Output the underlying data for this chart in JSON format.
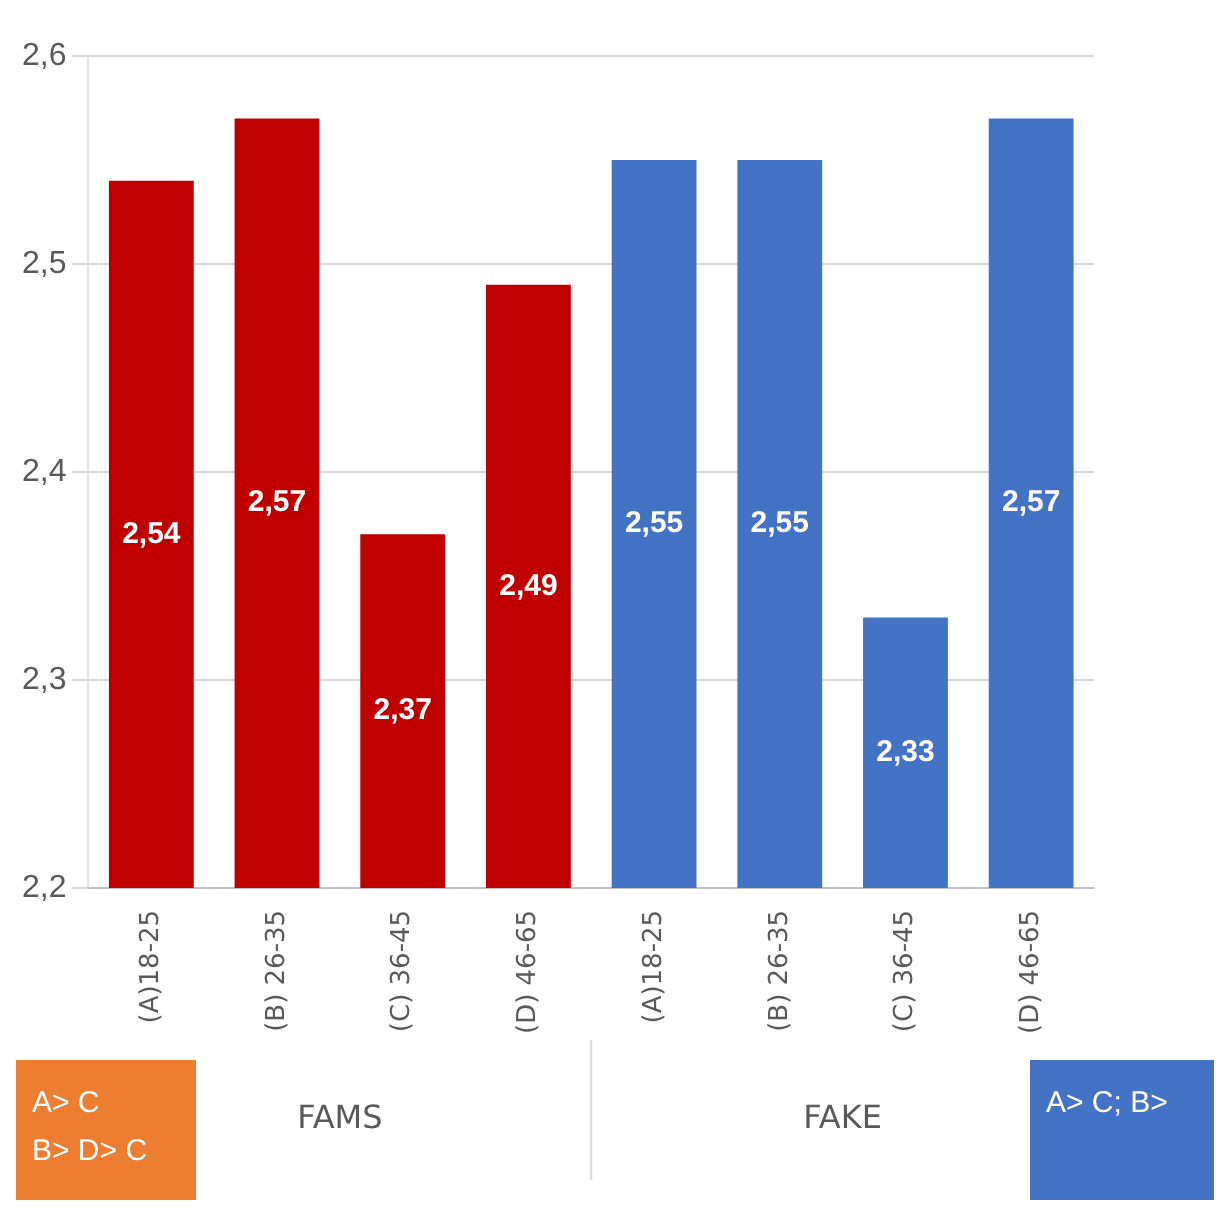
{
  "chart_data": {
    "type": "bar",
    "categories": [
      "(A)18-25",
      "(B) 26-35",
      "(C) 36-45",
      "(D) 46-65",
      "(A)18-25",
      "(B) 26-35",
      "(C) 36-45",
      "(D) 46-65"
    ],
    "values": [
      2.54,
      2.57,
      2.37,
      2.49,
      2.55,
      2.55,
      2.33,
      2.57
    ],
    "colors": [
      "#c00000",
      "#c00000",
      "#c00000",
      "#c00000",
      "#4472c4",
      "#4472c4",
      "#4472c4",
      "#4472c4"
    ],
    "value_labels": [
      "2,54",
      "2,57",
      "2,37",
      "2,49",
      "2,55",
      "2,55",
      "2,33",
      "2,57"
    ],
    "ylim": [
      2.2,
      2.6
    ],
    "yticks": [
      {
        "value": 2.2,
        "label": "2,2"
      },
      {
        "value": 2.3,
        "label": "2,3"
      },
      {
        "value": 2.4,
        "label": "2,4"
      },
      {
        "value": 2.5,
        "label": "2,5"
      },
      {
        "value": 2.6,
        "label": "2,6"
      }
    ],
    "grid": "y",
    "annotations": [
      "FAMS",
      "FAKE",
      "A> C\nB> D> C",
      "A> C; B>"
    ]
  }
}
